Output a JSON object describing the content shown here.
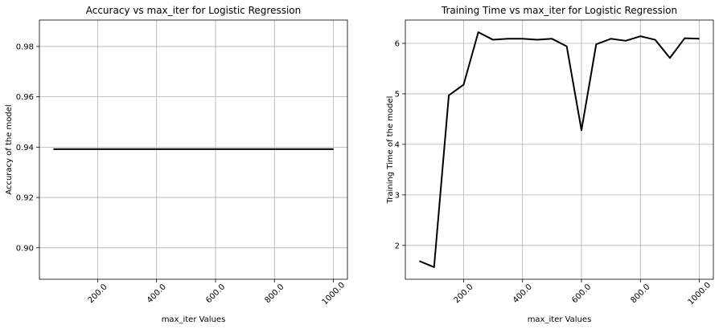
{
  "chart_data": [
    {
      "type": "line",
      "title": "Accuracy vs max_iter for Logistic Regression",
      "xlabel": "max_iter Values",
      "ylabel": "Accuracy of the model",
      "xlim": [
        2.5,
        1047.5
      ],
      "ylim": [
        0.8875,
        0.9905
      ],
      "xticks": [
        200,
        400,
        600,
        800,
        1000
      ],
      "xtick_labels": [
        "200.0",
        "400.0",
        "600.0",
        "800.0",
        "1000.0"
      ],
      "yticks": [
        0.9,
        0.92,
        0.94,
        0.96,
        0.98
      ],
      "ytick_labels": [
        "0.90",
        "0.92",
        "0.94",
        "0.96",
        "0.98"
      ],
      "grid": true,
      "series": [
        {
          "color": "#000000",
          "x": [
            50,
            100,
            150,
            200,
            250,
            300,
            350,
            400,
            450,
            500,
            550,
            600,
            650,
            700,
            750,
            800,
            850,
            900,
            950,
            1000
          ],
          "y": [
            0.9392,
            0.9392,
            0.9392,
            0.9392,
            0.9392,
            0.9392,
            0.9392,
            0.9392,
            0.9392,
            0.9392,
            0.9392,
            0.9392,
            0.9392,
            0.9392,
            0.9392,
            0.9392,
            0.9392,
            0.9392,
            0.9392,
            0.9392
          ]
        }
      ]
    },
    {
      "type": "line",
      "title": "Training Time vs max_iter for Logistic Regression",
      "xlabel": "max_iter Values",
      "ylabel": "Training Time of the model",
      "xlim": [
        2.5,
        1047.5
      ],
      "ylim": [
        1.33,
        6.46
      ],
      "xticks": [
        200,
        400,
        600,
        800,
        1000
      ],
      "xtick_labels": [
        "200.0",
        "400.0",
        "600.0",
        "800.0",
        "1000.0"
      ],
      "yticks": [
        2,
        3,
        4,
        5,
        6
      ],
      "ytick_labels": [
        "2",
        "3",
        "4",
        "5",
        "6"
      ],
      "grid": true,
      "series": [
        {
          "color": "#000000",
          "x": [
            50,
            100,
            150,
            200,
            250,
            300,
            350,
            400,
            450,
            500,
            550,
            600,
            650,
            700,
            750,
            800,
            850,
            900,
            950,
            1000
          ],
          "y": [
            1.69,
            1.57,
            4.97,
            5.18,
            6.22,
            6.07,
            6.09,
            6.09,
            6.07,
            6.09,
            5.94,
            4.28,
            5.98,
            6.09,
            6.05,
            6.14,
            6.07,
            5.71,
            6.1,
            6.09
          ]
        }
      ]
    }
  ]
}
